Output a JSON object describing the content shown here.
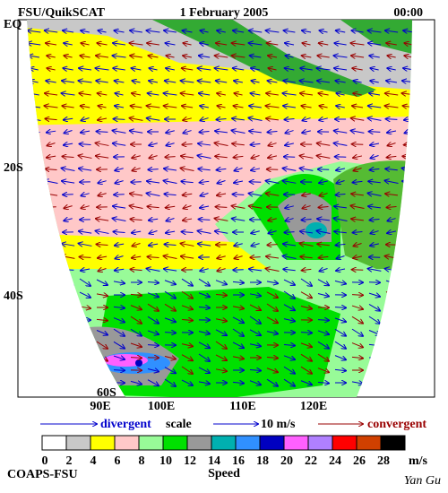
{
  "header": {
    "left": "FSU/QuikSCAT",
    "center": "1 February 2005",
    "right": "00:00"
  },
  "map": {
    "lat_labels": [
      "EQ",
      "20S",
      "40S",
      "60S"
    ],
    "lon_labels": [
      "90E",
      "100E",
      "110E",
      "120E"
    ]
  },
  "legend": {
    "divergent": "divergent",
    "scale": "scale",
    "scale_value": "10 m/s",
    "convergent": "convergent",
    "divergent_color": "#0000cc",
    "convergent_color": "#990000"
  },
  "colorbar": {
    "ticks": [
      "0",
      "2",
      "4",
      "6",
      "8",
      "10",
      "12",
      "14",
      "16",
      "18",
      "20",
      "22",
      "24",
      "26",
      "28"
    ],
    "unit": "m/s",
    "label": "Speed",
    "colors": [
      "#ffffff",
      "#c8c8c8",
      "#ffff00",
      "#ffc8c8",
      "#98fb98",
      "#00e000",
      "#999999",
      "#00b0b0",
      "#3090ff",
      "#0000c0",
      "#ff60ff",
      "#b080ff",
      "#ff0000",
      "#d04000",
      "#000000"
    ]
  },
  "footer": {
    "left": "COAPS-FSU",
    "right": "Yan Gu"
  }
}
